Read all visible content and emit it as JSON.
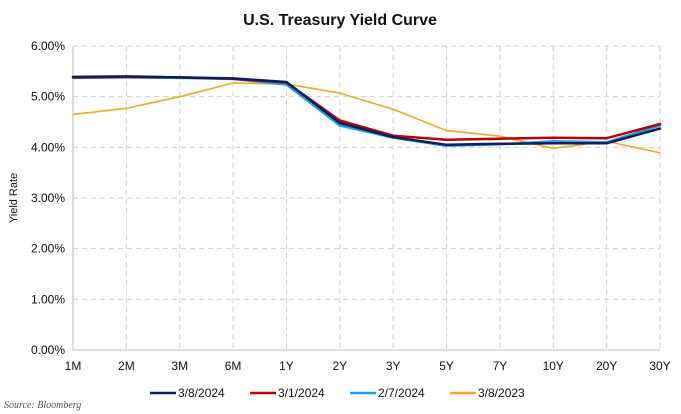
{
  "chart_data": {
    "type": "line",
    "title": "U.S. Treasury Yield Curve",
    "xlabel": "",
    "ylabel": "Yield Rate",
    "categories": [
      "1M",
      "2M",
      "3M",
      "6M",
      "1Y",
      "2Y",
      "3Y",
      "5Y",
      "7Y",
      "10Y",
      "20Y",
      "30Y"
    ],
    "y_ticks": [
      "0.00%",
      "1.00%",
      "2.00%",
      "3.00%",
      "4.00%",
      "5.00%",
      "6.00%"
    ],
    "ylim": [
      0,
      6
    ],
    "grid": true,
    "legend_position": "bottom",
    "series": [
      {
        "name": "3/8/2024",
        "color": "#0b1f5c",
        "values": [
          5.39,
          5.4,
          5.38,
          5.36,
          5.29,
          4.48,
          4.2,
          4.05,
          4.07,
          4.08,
          4.08,
          4.37
        ]
      },
      {
        "name": "3/1/2024",
        "color": "#c00000",
        "values": [
          5.38,
          5.39,
          5.38,
          5.35,
          5.28,
          4.53,
          4.23,
          4.15,
          4.17,
          4.19,
          4.18,
          4.46
        ]
      },
      {
        "name": "2/7/2024",
        "color": "#1aa3e8",
        "values": [
          5.37,
          5.38,
          5.37,
          5.35,
          5.24,
          4.43,
          4.19,
          4.03,
          4.06,
          4.12,
          4.1,
          4.43
        ]
      },
      {
        "name": "3/8/2023",
        "color": "#f5a623",
        "values": [
          4.65,
          4.77,
          5.0,
          5.27,
          5.25,
          5.07,
          4.75,
          4.33,
          4.22,
          3.98,
          4.12,
          3.89
        ]
      }
    ]
  },
  "source": "Source: Bloomberg"
}
